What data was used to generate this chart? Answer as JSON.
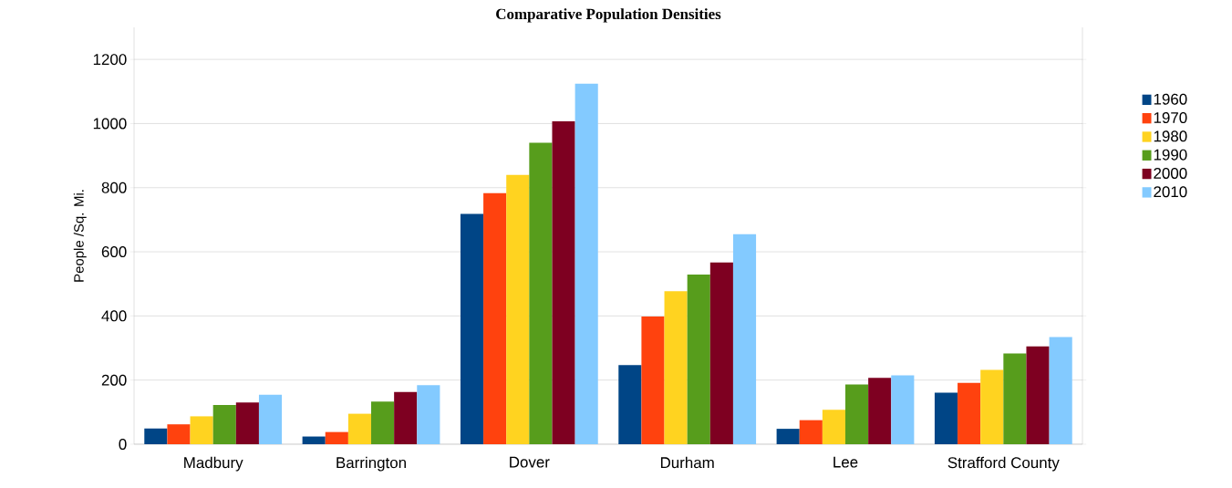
{
  "chart_data": {
    "type": "bar",
    "title": "Comparative Population Densities",
    "ylabel": "People /Sq. Mi.",
    "categories": [
      "Madbury",
      "Barrington",
      "Dover",
      "Durham",
      "Lee",
      "Strafford County"
    ],
    "series": [
      {
        "name": "1960",
        "color": "#004586",
        "values": [
          49,
          24,
          718,
          247,
          48,
          161
        ]
      },
      {
        "name": "1970",
        "color": "#ff420e",
        "values": [
          62,
          38,
          783,
          398,
          75,
          191
        ]
      },
      {
        "name": "1980",
        "color": "#ffd320",
        "values": [
          87,
          95,
          840,
          477,
          107,
          232
        ]
      },
      {
        "name": "1990",
        "color": "#579d1c",
        "values": [
          122,
          133,
          940,
          529,
          186,
          283
        ]
      },
      {
        "name": "2000",
        "color": "#7e0021",
        "values": [
          130,
          163,
          1007,
          567,
          207,
          305
        ]
      },
      {
        "name": "2010",
        "color": "#83caff",
        "values": [
          154,
          184,
          1124,
          655,
          215,
          334
        ]
      }
    ],
    "ylim": [
      0,
      1300
    ],
    "yticks": [
      0,
      200,
      400,
      600,
      800,
      1000,
      1200
    ],
    "grid": "y",
    "legend": "right"
  }
}
